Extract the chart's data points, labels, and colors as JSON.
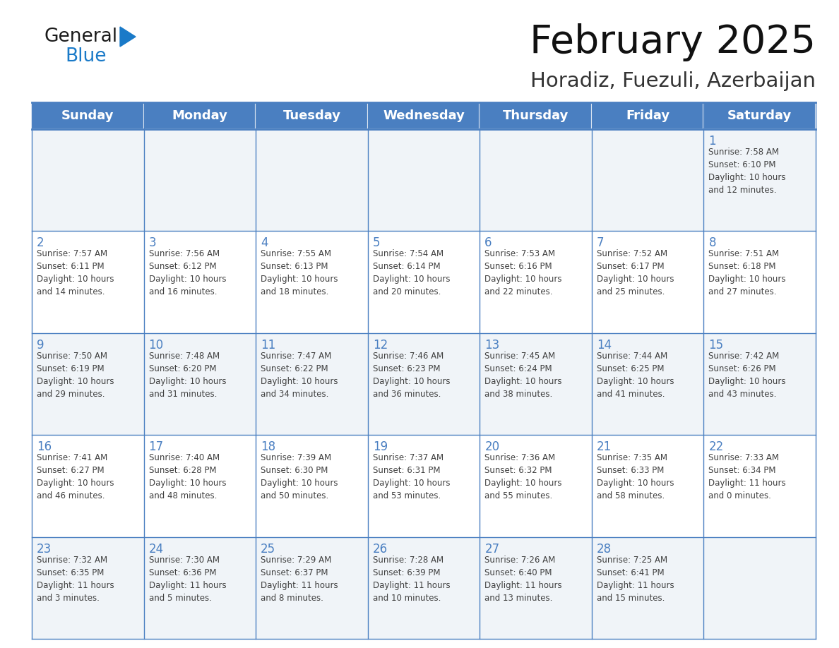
{
  "title": "February 2025",
  "subtitle": "Horadiz, Fuezuli, Azerbaijan",
  "header_color": "#4a7fc1",
  "header_text_color": "#FFFFFF",
  "header_days": [
    "Sunday",
    "Monday",
    "Tuesday",
    "Wednesday",
    "Thursday",
    "Friday",
    "Saturday"
  ],
  "background_color": "#FFFFFF",
  "cell_bg_even": "#f0f4f8",
  "cell_bg_odd": "#FFFFFF",
  "grid_color": "#4a7fc1",
  "day_number_color": "#4a7fc1",
  "text_color": "#404040",
  "logo_general_color": "#1a1a1a",
  "logo_blue_color": "#1a7ac8",
  "calendar_data": [
    [
      null,
      null,
      null,
      null,
      null,
      null,
      {
        "day": 1,
        "sunrise": "7:58 AM",
        "sunset": "6:10 PM",
        "daylight": "10 hours\nand 12 minutes."
      }
    ],
    [
      {
        "day": 2,
        "sunrise": "7:57 AM",
        "sunset": "6:11 PM",
        "daylight": "10 hours\nand 14 minutes."
      },
      {
        "day": 3,
        "sunrise": "7:56 AM",
        "sunset": "6:12 PM",
        "daylight": "10 hours\nand 16 minutes."
      },
      {
        "day": 4,
        "sunrise": "7:55 AM",
        "sunset": "6:13 PM",
        "daylight": "10 hours\nand 18 minutes."
      },
      {
        "day": 5,
        "sunrise": "7:54 AM",
        "sunset": "6:14 PM",
        "daylight": "10 hours\nand 20 minutes."
      },
      {
        "day": 6,
        "sunrise": "7:53 AM",
        "sunset": "6:16 PM",
        "daylight": "10 hours\nand 22 minutes."
      },
      {
        "day": 7,
        "sunrise": "7:52 AM",
        "sunset": "6:17 PM",
        "daylight": "10 hours\nand 25 minutes."
      },
      {
        "day": 8,
        "sunrise": "7:51 AM",
        "sunset": "6:18 PM",
        "daylight": "10 hours\nand 27 minutes."
      }
    ],
    [
      {
        "day": 9,
        "sunrise": "7:50 AM",
        "sunset": "6:19 PM",
        "daylight": "10 hours\nand 29 minutes."
      },
      {
        "day": 10,
        "sunrise": "7:48 AM",
        "sunset": "6:20 PM",
        "daylight": "10 hours\nand 31 minutes."
      },
      {
        "day": 11,
        "sunrise": "7:47 AM",
        "sunset": "6:22 PM",
        "daylight": "10 hours\nand 34 minutes."
      },
      {
        "day": 12,
        "sunrise": "7:46 AM",
        "sunset": "6:23 PM",
        "daylight": "10 hours\nand 36 minutes."
      },
      {
        "day": 13,
        "sunrise": "7:45 AM",
        "sunset": "6:24 PM",
        "daylight": "10 hours\nand 38 minutes."
      },
      {
        "day": 14,
        "sunrise": "7:44 AM",
        "sunset": "6:25 PM",
        "daylight": "10 hours\nand 41 minutes."
      },
      {
        "day": 15,
        "sunrise": "7:42 AM",
        "sunset": "6:26 PM",
        "daylight": "10 hours\nand 43 minutes."
      }
    ],
    [
      {
        "day": 16,
        "sunrise": "7:41 AM",
        "sunset": "6:27 PM",
        "daylight": "10 hours\nand 46 minutes."
      },
      {
        "day": 17,
        "sunrise": "7:40 AM",
        "sunset": "6:28 PM",
        "daylight": "10 hours\nand 48 minutes."
      },
      {
        "day": 18,
        "sunrise": "7:39 AM",
        "sunset": "6:30 PM",
        "daylight": "10 hours\nand 50 minutes."
      },
      {
        "day": 19,
        "sunrise": "7:37 AM",
        "sunset": "6:31 PM",
        "daylight": "10 hours\nand 53 minutes."
      },
      {
        "day": 20,
        "sunrise": "7:36 AM",
        "sunset": "6:32 PM",
        "daylight": "10 hours\nand 55 minutes."
      },
      {
        "day": 21,
        "sunrise": "7:35 AM",
        "sunset": "6:33 PM",
        "daylight": "10 hours\nand 58 minutes."
      },
      {
        "day": 22,
        "sunrise": "7:33 AM",
        "sunset": "6:34 PM",
        "daylight": "11 hours\nand 0 minutes."
      }
    ],
    [
      {
        "day": 23,
        "sunrise": "7:32 AM",
        "sunset": "6:35 PM",
        "daylight": "11 hours\nand 3 minutes."
      },
      {
        "day": 24,
        "sunrise": "7:30 AM",
        "sunset": "6:36 PM",
        "daylight": "11 hours\nand 5 minutes."
      },
      {
        "day": 25,
        "sunrise": "7:29 AM",
        "sunset": "6:37 PM",
        "daylight": "11 hours\nand 8 minutes."
      },
      {
        "day": 26,
        "sunrise": "7:28 AM",
        "sunset": "6:39 PM",
        "daylight": "11 hours\nand 10 minutes."
      },
      {
        "day": 27,
        "sunrise": "7:26 AM",
        "sunset": "6:40 PM",
        "daylight": "11 hours\nand 13 minutes."
      },
      {
        "day": 28,
        "sunrise": "7:25 AM",
        "sunset": "6:41 PM",
        "daylight": "11 hours\nand 15 minutes."
      },
      null
    ]
  ]
}
